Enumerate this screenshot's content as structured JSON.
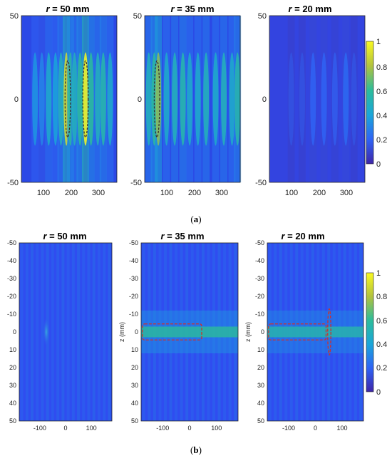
{
  "chart_data": [
    {
      "type": "heatmap",
      "group": "(a)",
      "panels": [
        {
          "title_var": "r",
          "title_rest": " = 50 mm",
          "xticks": [
            "100",
            "200",
            "300"
          ],
          "xlim": [
            20,
            370
          ],
          "yticks": [
            "50",
            "0",
            "-50"
          ],
          "ylim": [
            -50,
            50
          ],
          "stripes": [
            70,
            95,
            120,
            145,
            165,
            185,
            200,
            215,
            235,
            255,
            275,
            300,
            320,
            345
          ],
          "intensity": [
            0.35,
            0.3,
            0.45,
            0.4,
            0.5,
            0.9,
            0.6,
            0.5,
            0.6,
            1.0,
            0.6,
            0.5,
            0.55,
            0.45
          ],
          "ellipses": [
            {
              "x": 190,
              "y": 0,
              "rx": 10,
              "ry": 10
            },
            {
              "x": 255,
              "y": 0,
              "rx": 10,
              "ry": 10
            }
          ]
        },
        {
          "title_var": "r",
          "title_rest": " = 35 mm",
          "xticks": [
            "100",
            "200",
            "300"
          ],
          "xlim": [
            20,
            370
          ],
          "yticks": [
            "50",
            "0",
            "-50"
          ],
          "ylim": [
            -50,
            50
          ],
          "stripes": [
            35,
            55,
            70,
            100,
            130,
            160,
            185,
            215,
            245,
            280,
            310,
            340,
            360
          ],
          "intensity": [
            0.5,
            0.6,
            0.75,
            0.45,
            0.5,
            0.55,
            0.45,
            0.45,
            0.5,
            0.45,
            0.5,
            0.45,
            0.55
          ],
          "ellipses": [
            {
              "x": 65,
              "y": 0,
              "rx": 10,
              "ry": 10
            }
          ]
        },
        {
          "title_var": "r",
          "title_rest": " = 20 mm",
          "xticks": [
            "100",
            "200",
            "300"
          ],
          "xlim": [
            20,
            370
          ],
          "yticks": [
            "50",
            "0",
            "-50"
          ],
          "ylim": [
            -50,
            50
          ],
          "stripes": [
            100,
            140,
            180,
            220,
            260,
            300,
            330
          ],
          "intensity": [
            0.15,
            0.15,
            0.2,
            0.2,
            0.18,
            0.22,
            0.15
          ],
          "ellipses": []
        }
      ],
      "colorbar": {
        "ticks": [
          "1",
          "0.8",
          "0.6",
          "0.4",
          "0.2",
          "0"
        ],
        "range": [
          0,
          1
        ]
      },
      "caption": "(a)"
    },
    {
      "type": "heatmap",
      "group": "(b)",
      "panels": [
        {
          "title_var": "r",
          "title_rest": " = 50 mm",
          "ylabel": "",
          "xticks": [
            "-100",
            "0",
            "100"
          ],
          "xlim": [
            -180,
            180
          ],
          "yticks": [
            "-50",
            "-40",
            "-30",
            "-20",
            "-10",
            "0",
            "10",
            "20",
            "30",
            "40",
            "50"
          ],
          "ylim": [
            -50,
            50
          ],
          "spot": {
            "x": -75,
            "z": 0,
            "intensity": 0.45
          },
          "band_intensity": 0.0,
          "rectangles": [],
          "ellipses": []
        },
        {
          "title_var": "r",
          "title_rest": " = 35 mm",
          "ylabel": "z (mm)",
          "xticks": [
            "-100",
            "0",
            "100"
          ],
          "xlim": [
            -180,
            180
          ],
          "yticks": [
            "-50",
            "-40",
            "-30",
            "-20",
            "-10",
            "0",
            "10",
            "20",
            "30",
            "40",
            "50"
          ],
          "ylim": [
            -50,
            50
          ],
          "spot": null,
          "band_intensity": 0.6,
          "rectangles": [
            {
              "x0": -175,
              "x1": 45,
              "z0": -4.5,
              "z1": 4.5
            }
          ],
          "ellipses": []
        },
        {
          "title_var": "r",
          "title_rest": " = 20 mm",
          "ylabel": "z (mm)",
          "xticks": [
            "-100",
            "0",
            "100"
          ],
          "xlim": [
            -180,
            180
          ],
          "yticks": [
            "-50",
            "-40",
            "-30",
            "-20",
            "-10",
            "0",
            "10",
            "20",
            "30",
            "40",
            "50"
          ],
          "ylim": [
            -50,
            50
          ],
          "spot": null,
          "band_intensity": 0.55,
          "rectangles": [
            {
              "x0": -175,
              "x1": 40,
              "z0": -4.5,
              "z1": 4.5
            }
          ],
          "ellipses": [
            {
              "x": 52,
              "z": 0,
              "rx": 10,
              "rz": 10
            }
          ]
        }
      ],
      "colorbar": {
        "ticks": [
          "1",
          "0.8",
          "0.6",
          "0.4",
          "0.2",
          "0"
        ],
        "range": [
          0,
          1
        ]
      },
      "caption": "(b)"
    }
  ]
}
